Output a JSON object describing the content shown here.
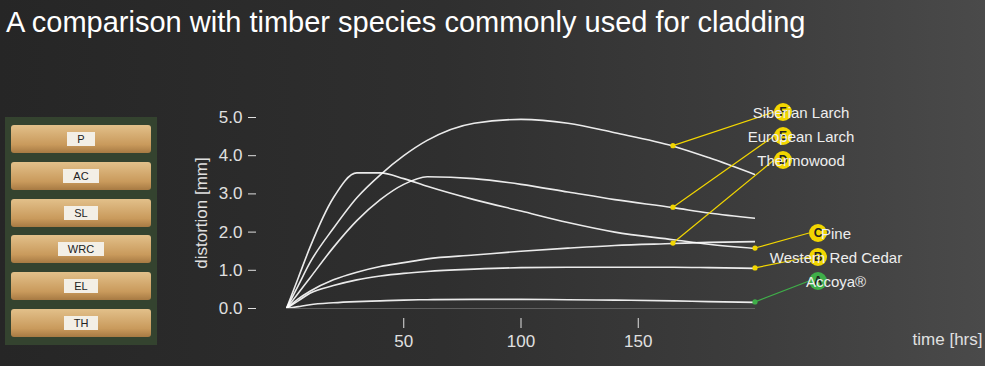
{
  "photo": {
    "labels": [
      "P",
      "AC",
      "SL",
      "WRC",
      "EL",
      "TH"
    ]
  },
  "chart_data": {
    "type": "line",
    "title": "A comparison with timber species commonly used for cladding",
    "x_label": "time [hrs]",
    "y_label": "distortion [mm]",
    "x": [
      0,
      5,
      10,
      20,
      30,
      40,
      50,
      60,
      80,
      100,
      120,
      140,
      165,
      180,
      200
    ],
    "xlim": [
      0,
      200
    ],
    "xticks": [
      50,
      100,
      150
    ],
    "ylim": [
      0,
      5
    ],
    "yticks": [
      0,
      1,
      2,
      3,
      4,
      5
    ],
    "series": [
      {
        "name": "Siberian Larch",
        "badge": "F",
        "badge_color": "#f2d600",
        "color": "#ffffff",
        "values": [
          0,
          0.6,
          1.2,
          2.1,
          2.9,
          3.5,
          4.0,
          4.4,
          4.85,
          4.95,
          4.85,
          4.6,
          4.25,
          3.95,
          3.5
        ]
      },
      {
        "name": "European Larch",
        "badge": "E",
        "badge_color": "#f2d600",
        "color": "#ffffff",
        "values": [
          0,
          0.4,
          0.8,
          1.6,
          2.3,
          2.85,
          3.25,
          3.45,
          3.4,
          3.25,
          3.05,
          2.85,
          2.64,
          2.5,
          2.36
        ]
      },
      {
        "name": "Thermowood",
        "badge": "D",
        "badge_color": "#f2d600",
        "color": "#ffffff",
        "values": [
          0,
          0.25,
          0.45,
          0.75,
          0.95,
          1.1,
          1.2,
          1.3,
          1.4,
          1.5,
          1.58,
          1.65,
          1.7,
          1.73,
          1.75
        ]
      },
      {
        "name": "Pine",
        "badge": "C",
        "badge_color": "#f2d600",
        "color": "#ffffff",
        "values": [
          0,
          0.8,
          1.6,
          2.9,
          3.55,
          3.55,
          3.4,
          3.2,
          2.85,
          2.55,
          2.25,
          2.0,
          1.8,
          1.68,
          1.57
        ]
      },
      {
        "name": "Western Red Cedar",
        "badge": "B",
        "badge_color": "#f2d600",
        "color": "#ffffff",
        "values": [
          0,
          0.2,
          0.4,
          0.6,
          0.75,
          0.85,
          0.92,
          0.97,
          1.03,
          1.07,
          1.08,
          1.08,
          1.08,
          1.07,
          1.05
        ]
      },
      {
        "name": "Accoya®",
        "badge": "A",
        "badge_color": "#3fae49",
        "color": "#ffffff",
        "values": [
          0,
          0.05,
          0.1,
          0.15,
          0.18,
          0.2,
          0.22,
          0.23,
          0.24,
          0.24,
          0.23,
          0.22,
          0.2,
          0.18,
          0.16
        ]
      }
    ]
  }
}
